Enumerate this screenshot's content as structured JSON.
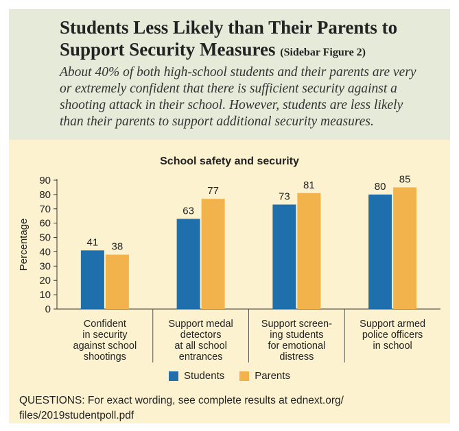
{
  "header": {
    "title_line1": "Students Less Likely than Their Parents to",
    "title_line2": "Support Security Measures",
    "figure_label": "(Sidebar Figure 2)",
    "subtitle_lines": [
      "About 40% of both high-school students and their parents are very",
      "or extremely confident that there is sufficient security against a",
      "shooting attack in their school. However, students are less likely",
      "than their parents to support additional security measures."
    ]
  },
  "chart_data": {
    "type": "bar",
    "title": "School safety and security",
    "ylabel": "Percentage",
    "xlabel": "",
    "ylim": [
      0,
      90
    ],
    "yticks": [
      0,
      10,
      20,
      30,
      40,
      50,
      60,
      70,
      80,
      90
    ],
    "categories": [
      [
        "Confident",
        "in security",
        "against school",
        "shootings"
      ],
      [
        "Support medal",
        "detectors",
        "at all school",
        "entrances"
      ],
      [
        "Support screen-",
        "ing students",
        "for emotional",
        "distress"
      ],
      [
        "Support armed",
        "police officers",
        "in school"
      ]
    ],
    "series": [
      {
        "name": "Students",
        "color": "#1f6fad",
        "values": [
          41,
          63,
          73,
          80
        ]
      },
      {
        "name": "Parents",
        "color": "#f2b34c",
        "values": [
          38,
          77,
          81,
          85
        ]
      }
    ],
    "legend": "bottom-center",
    "grid": false
  },
  "footnote_lines": [
    "QUESTIONS: For exact wording, see complete results at ednext.org/",
    "files/2019studentpoll.pdf"
  ]
}
